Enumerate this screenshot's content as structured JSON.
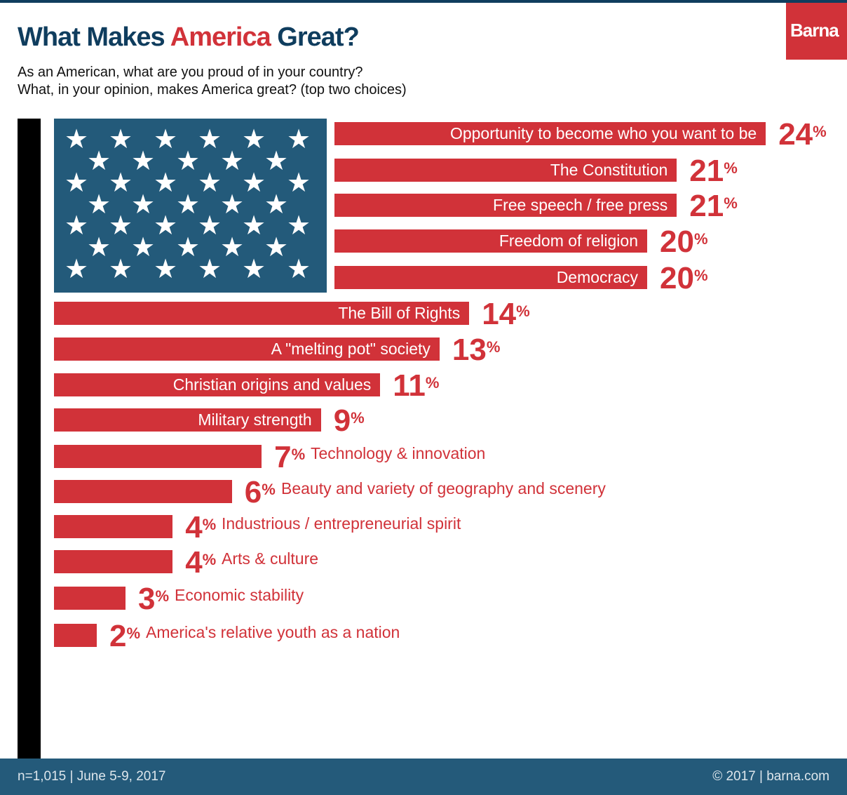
{
  "header": {
    "title_part1": "What Makes ",
    "title_highlight": "America",
    "title_part2": " Great?",
    "subtitle_line1": "As an American, what are you proud of in your country?",
    "subtitle_line2": "What, in your opinion, makes America great? (top two choices)",
    "logo": "Barna"
  },
  "colors": {
    "bar": "#d13239",
    "title": "#0f3d5e",
    "flag": "#235a7a",
    "footer": "#245a7a"
  },
  "chart_data": {
    "type": "bar",
    "orientation": "horizontal",
    "unit": "%",
    "categories": [
      "Opportunity to become who you want to be",
      "The Constitution",
      "Free speech / free press",
      "Freedom of religion",
      "Democracy",
      "The Bill of Rights",
      "A \"melting pot\" society",
      "Christian origins and values",
      "Military strength",
      "Technology & innovation",
      "Beauty and variety of geography and scenery",
      "Industrious / entrepreneurial spirit",
      "Arts & culture",
      "Economic stability",
      "America's relative youth as a nation"
    ],
    "values": [
      24,
      21,
      21,
      20,
      20,
      14,
      13,
      11,
      9,
      7,
      6,
      4,
      4,
      3,
      2
    ]
  },
  "footer": {
    "left": "n=1,015 | June 5-9, 2017",
    "right": "© 2017 | barna.com"
  }
}
